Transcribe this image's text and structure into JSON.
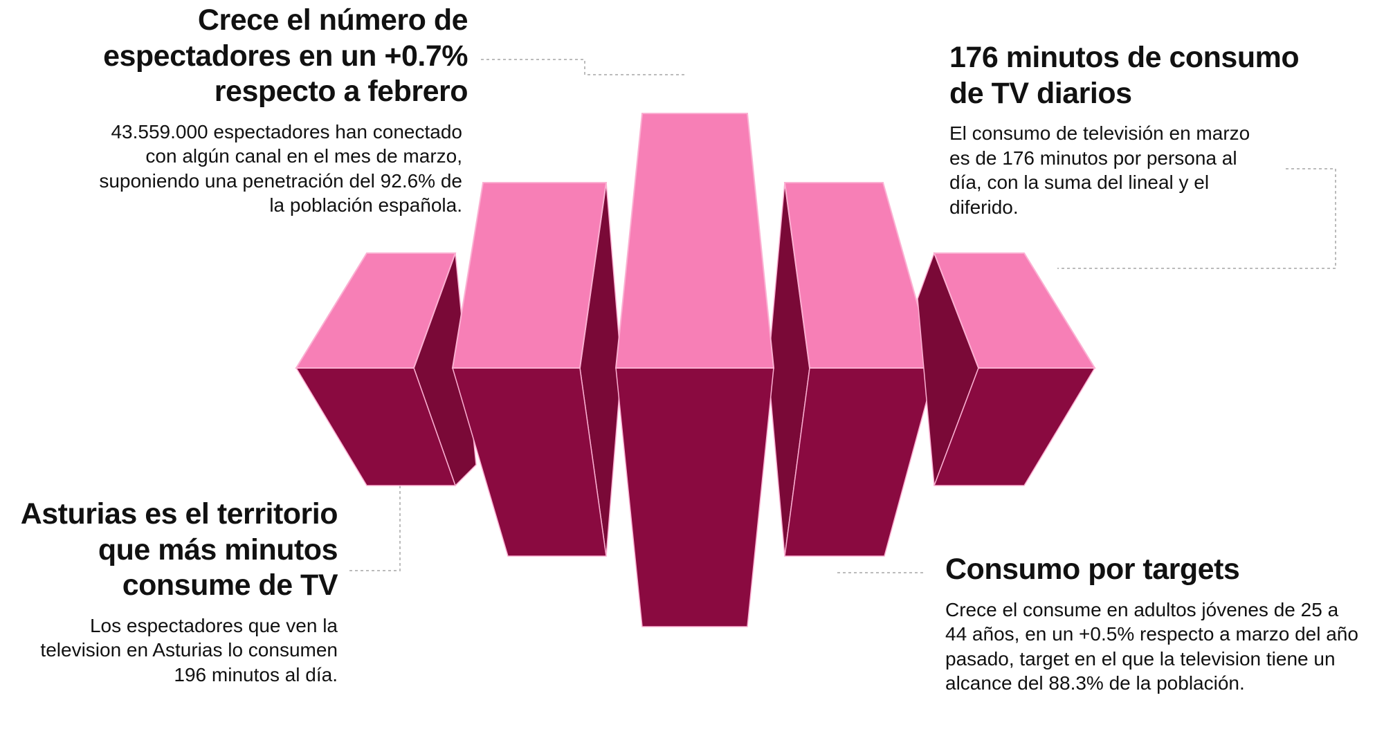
{
  "colors": {
    "top_face": "#f77fb6",
    "front_face": "#8a0a40",
    "side_face": "#7a0937",
    "edge_light": "#fbb0d2",
    "leader": "#bbbbbb"
  },
  "callouts": {
    "viewers": {
      "title": "Crece el número de\nespectadores en un +0.7%\nrespecto a febrero",
      "body": "43.559.000 espectadores han conectado\ncon algún canal en el mes de marzo,\nsuponiendo una penetración del 92.6% de\nla población española."
    },
    "minutes": {
      "title": "176 minutos de consumo\nde TV diarios",
      "body": "El consumo de televisión en marzo\nes de 176 minutos por persona al\ndía, con la suma del lineal y el\ndiferido."
    },
    "asturias": {
      "title": "Asturias es el territorio\nque más minutos\nconsume de TV",
      "body": "Los espectadores que ven la\ntelevision en Asturias lo consumen\n196 minutos al día."
    },
    "targets": {
      "title": "Consumo por targets",
      "body": "Crece el consume en adultos jóvenes de 25 a\n44 años, en un +0.5% respecto a marzo del año\npasado, target en el que la television tiene un\nalcance del 88.3% de la población."
    }
  }
}
